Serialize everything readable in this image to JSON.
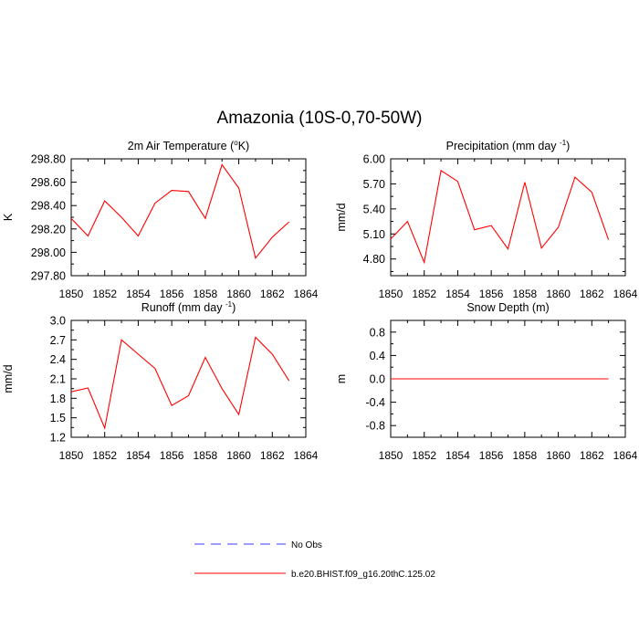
{
  "title": "Amazonia (10S-0,70-50W)",
  "legend": {
    "entries": [
      {
        "label": "No Obs",
        "color": "#3b3bff",
        "style": "dashed"
      },
      {
        "label": "b.e20.BHIST.f09_g16.20thC.125.02",
        "color": "#ff0000",
        "style": "solid"
      }
    ]
  },
  "colors": {
    "series": "#ff0000",
    "axis": "#000000"
  },
  "chart_data": [
    {
      "type": "line",
      "title": "2m Air Temperature",
      "title_unit": "K",
      "ylabel": "K",
      "xlim": [
        1850,
        1864
      ],
      "ylim": [
        297.8,
        298.8
      ],
      "xticks": [
        "1850",
        "1852",
        "1854",
        "1856",
        "1858",
        "1860",
        "1862",
        "1864"
      ],
      "yticks": [
        "297.80",
        "298.00",
        "298.20",
        "298.40",
        "298.60",
        "298.80"
      ],
      "x": [
        1850,
        1851,
        1852,
        1853,
        1854,
        1855,
        1856,
        1857,
        1858,
        1859,
        1860,
        1861,
        1862,
        1863
      ],
      "series": [
        {
          "values": [
            298.29,
            298.14,
            298.44,
            298.3,
            298.14,
            298.42,
            298.53,
            298.52,
            298.29,
            298.75,
            298.55,
            297.95,
            298.13,
            298.26
          ]
        }
      ]
    },
    {
      "type": "line",
      "title": "Precipitation (mm day",
      "title_sup": "-1",
      "title_after": ")",
      "ylabel": "mm/d",
      "xlim": [
        1850,
        1864
      ],
      "ylim": [
        4.6,
        6.0
      ],
      "xticks": [
        "1850",
        "1852",
        "1854",
        "1856",
        "1858",
        "1860",
        "1862",
        "1864"
      ],
      "yticks": [
        "4.80",
        "5.10",
        "5.40",
        "5.70",
        "6.00"
      ],
      "x": [
        1850,
        1851,
        1852,
        1853,
        1854,
        1855,
        1856,
        1857,
        1858,
        1859,
        1860,
        1861,
        1862,
        1863
      ],
      "series": [
        {
          "values": [
            5.04,
            5.25,
            4.76,
            5.86,
            5.73,
            5.15,
            5.2,
            4.92,
            5.72,
            4.93,
            5.18,
            5.78,
            5.6,
            5.03
          ]
        }
      ]
    },
    {
      "type": "line",
      "title": "Runoff (mm day",
      "title_sup": "-1",
      "title_after": ")",
      "ylabel": "mm/d",
      "xlim": [
        1850,
        1864
      ],
      "ylim": [
        1.2,
        3.0
      ],
      "xticks": [
        "1850",
        "1852",
        "1854",
        "1856",
        "1858",
        "1860",
        "1862",
        "1864"
      ],
      "yticks": [
        "1.2",
        "1.5",
        "1.8",
        "2.1",
        "2.4",
        "2.7",
        "3.0"
      ],
      "x": [
        1850,
        1851,
        1852,
        1853,
        1854,
        1855,
        1856,
        1857,
        1858,
        1859,
        1860,
        1861,
        1862,
        1863
      ],
      "series": [
        {
          "values": [
            1.9,
            1.96,
            1.34,
            2.7,
            2.48,
            2.26,
            1.69,
            1.84,
            2.43,
            1.95,
            1.55,
            2.74,
            2.48,
            2.07
          ]
        }
      ]
    },
    {
      "type": "line",
      "title": "Snow Depth (m)",
      "ylabel": "m",
      "xlim": [
        1850,
        1864
      ],
      "ylim": [
        -1.0,
        1.0
      ],
      "xticks": [
        "1850",
        "1852",
        "1854",
        "1856",
        "1858",
        "1860",
        "1862",
        "1864"
      ],
      "yticks": [
        "-0.8",
        "-0.4",
        "0.0",
        "0.4",
        "0.8"
      ],
      "x": [
        1850,
        1851,
        1852,
        1853,
        1854,
        1855,
        1856,
        1857,
        1858,
        1859,
        1860,
        1861,
        1862,
        1863
      ],
      "series": [
        {
          "values": [
            0,
            0,
            0,
            0,
            0,
            0,
            0,
            0,
            0,
            0,
            0,
            0,
            0,
            0
          ]
        }
      ]
    }
  ]
}
